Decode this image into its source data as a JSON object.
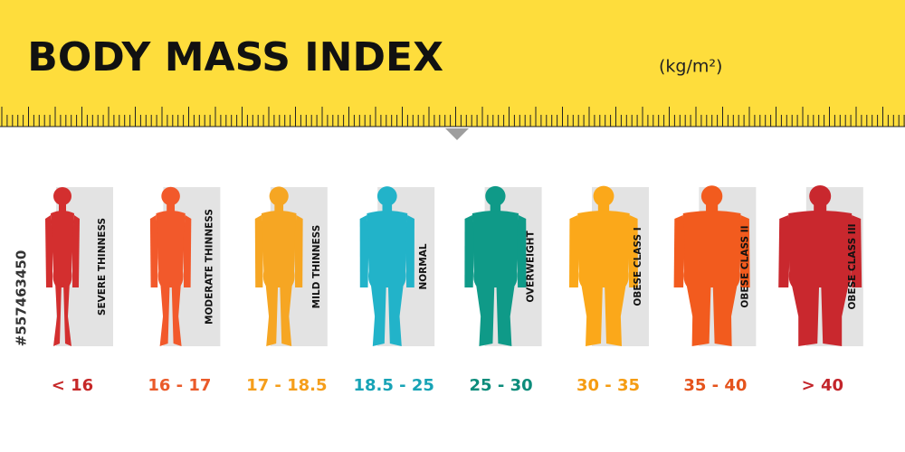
{
  "header": {
    "title": "BODY MASS INDEX",
    "unit": "(kg/m²)"
  },
  "side_id": "#557463450",
  "categories": [
    {
      "label": "SEVERE THINNESS",
      "range": "< 16",
      "color": "#d32f2f",
      "text_color": "#c62828"
    },
    {
      "label": "MODERATE THINNESS",
      "range": "16 - 17",
      "color": "#f2592b",
      "text_color": "#ea5a2a"
    },
    {
      "label": "MILD THINNESS",
      "range": "17 - 18.5",
      "color": "#f6a623",
      "text_color": "#f59e1b"
    },
    {
      "label": "NORMAL",
      "range": "18.5 - 25",
      "color": "#22b3c9",
      "text_color": "#17a3b6"
    },
    {
      "label": "OVERWEIGHT",
      "range": "25 - 30",
      "color": "#0f9a88",
      "text_color": "#0c8c7b"
    },
    {
      "label": "OBESE CLASS I",
      "range": "30 - 35",
      "color": "#fba81a",
      "text_color": "#f59c12"
    },
    {
      "label": "OBESE CLASS II",
      "range": "35 - 40",
      "color": "#f25b1e",
      "text_color": "#e5531c"
    },
    {
      "label": "OBESE CLASS III",
      "range": "> 40",
      "color": "#c9282e",
      "text_color": "#c3252b"
    }
  ]
}
